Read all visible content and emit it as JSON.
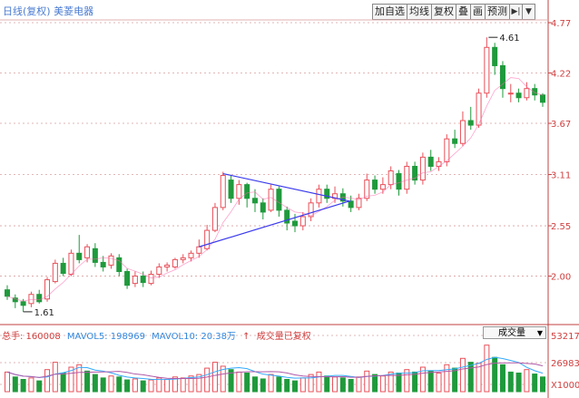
{
  "title": "日线(复权) 美菱电器",
  "toolbar": {
    "buttons": [
      "加自选",
      "均线",
      "复权",
      "叠",
      "画",
      "预测"
    ],
    "icons": [
      "pin-icon",
      "menu-dropdown-icon"
    ]
  },
  "price_axis": [
    "4.77",
    "4.22",
    "3.67",
    "3.11",
    "2.55",
    "2.00"
  ],
  "volume_axis": [
    "53217",
    "26983",
    "X1000"
  ],
  "annotations": {
    "high": "4.61",
    "low": "1.61"
  },
  "volume_legend": {
    "total": "总手: 160008",
    "mavol5": "MAVOL5: 198969",
    "mavol10": "MAVOL10: 20.38万",
    "arrow": "↑",
    "note": "成交量已复权"
  },
  "volume_dropdown": "成交量",
  "colors": {
    "up": "#e8505a",
    "down": "#1f9a3c",
    "triangle": "#3a3af0",
    "ma": "#33aaff",
    "mavol10": "#b05aa8",
    "axis_text": "#d04040"
  },
  "chart_data": {
    "type": "candlestick",
    "title": "",
    "y_range": [
      1.5,
      4.8
    ],
    "y_ticks": [
      4.77,
      4.22,
      3.67,
      3.11,
      2.55,
      2.0
    ],
    "high_label": 4.61,
    "low_label": 1.61,
    "candles": [
      [
        1.85,
        1.78,
        1.9,
        1.74
      ],
      [
        1.76,
        1.72,
        1.8,
        1.65
      ],
      [
        1.72,
        1.68,
        1.75,
        1.61
      ],
      [
        1.7,
        1.8,
        1.83,
        1.66
      ],
      [
        1.8,
        1.72,
        1.85,
        1.7
      ],
      [
        1.75,
        1.96,
        1.99,
        1.72
      ],
      [
        1.94,
        2.14,
        2.18,
        1.92
      ],
      [
        2.14,
        2.03,
        2.2,
        2.0
      ],
      [
        2.02,
        2.25,
        2.29,
        2.0
      ],
      [
        2.25,
        2.18,
        2.45,
        2.14
      ],
      [
        2.2,
        2.32,
        2.35,
        2.15
      ],
      [
        2.3,
        2.15,
        2.36,
        2.1
      ],
      [
        2.15,
        2.1,
        2.22,
        2.05
      ],
      [
        2.12,
        2.22,
        2.25,
        2.08
      ],
      [
        2.2,
        2.05,
        2.24,
        2.0
      ],
      [
        2.05,
        1.9,
        2.08,
        1.86
      ],
      [
        1.92,
        2.0,
        2.05,
        1.88
      ],
      [
        2.0,
        1.93,
        2.05,
        1.88
      ],
      [
        1.92,
        2.02,
        2.06,
        1.9
      ],
      [
        2.02,
        2.1,
        2.14,
        1.98
      ],
      [
        2.1,
        2.12,
        2.15,
        2.05
      ],
      [
        2.1,
        2.18,
        2.2,
        2.08
      ],
      [
        2.18,
        2.2,
        2.24,
        2.14
      ],
      [
        2.2,
        2.25,
        2.28,
        2.16
      ],
      [
        2.25,
        2.32,
        2.4,
        2.2
      ],
      [
        2.3,
        2.5,
        2.56,
        2.28
      ],
      [
        2.5,
        2.75,
        2.8,
        2.48
      ],
      [
        2.75,
        3.1,
        3.14,
        2.72
      ],
      [
        3.05,
        2.85,
        3.1,
        2.8
      ],
      [
        2.85,
        3.0,
        3.05,
        2.78
      ],
      [
        3.0,
        2.85,
        3.02,
        2.75
      ],
      [
        2.85,
        2.8,
        2.95,
        2.7
      ],
      [
        2.8,
        2.7,
        2.85,
        2.62
      ],
      [
        2.72,
        2.95,
        3.0,
        2.7
      ],
      [
        2.95,
        2.72,
        2.98,
        2.65
      ],
      [
        2.72,
        2.58,
        2.76,
        2.5
      ],
      [
        2.6,
        2.55,
        2.68,
        2.48
      ],
      [
        2.55,
        2.65,
        2.7,
        2.5
      ],
      [
        2.65,
        2.8,
        2.85,
        2.6
      ],
      [
        2.8,
        2.95,
        3.0,
        2.75
      ],
      [
        2.95,
        2.85,
        3.0,
        2.8
      ],
      [
        2.85,
        2.9,
        2.98,
        2.8
      ],
      [
        2.9,
        2.82,
        2.96,
        2.76
      ],
      [
        2.82,
        2.75,
        2.88,
        2.7
      ],
      [
        2.75,
        2.85,
        2.9,
        2.72
      ],
      [
        2.85,
        3.05,
        3.12,
        2.82
      ],
      [
        3.05,
        2.95,
        3.1,
        2.9
      ],
      [
        2.95,
        3.0,
        3.08,
        2.9
      ],
      [
        3.0,
        3.15,
        3.2,
        2.95
      ],
      [
        3.12,
        2.95,
        3.16,
        2.88
      ],
      [
        2.95,
        3.2,
        3.25,
        2.9
      ],
      [
        3.2,
        3.05,
        3.25,
        3.0
      ],
      [
        3.05,
        3.3,
        3.35,
        3.0
      ],
      [
        3.3,
        3.2,
        3.38,
        3.15
      ],
      [
        3.2,
        3.25,
        3.3,
        3.15
      ],
      [
        3.25,
        3.5,
        3.55,
        3.2
      ],
      [
        3.5,
        3.45,
        3.6,
        3.4
      ],
      [
        3.45,
        3.7,
        3.8,
        3.42
      ],
      [
        3.7,
        3.65,
        3.85,
        3.6
      ],
      [
        3.65,
        4.0,
        4.05,
        3.62
      ],
      [
        4.0,
        4.5,
        4.61,
        3.95
      ],
      [
        4.5,
        4.3,
        4.55,
        4.2
      ],
      [
        4.3,
        4.05,
        4.35,
        3.95
      ],
      [
        4.0,
        4.0,
        4.1,
        3.9
      ],
      [
        4.0,
        3.95,
        4.05,
        3.9
      ],
      [
        3.95,
        4.05,
        4.12,
        3.92
      ],
      [
        4.05,
        3.98,
        4.1,
        3.92
      ],
      [
        3.98,
        3.9,
        4.0,
        3.85
      ]
    ],
    "volume": [
      [
        40,
        1
      ],
      [
        30,
        0
      ],
      [
        25,
        0
      ],
      [
        28,
        1
      ],
      [
        22,
        0
      ],
      [
        45,
        1
      ],
      [
        60,
        1
      ],
      [
        38,
        0
      ],
      [
        50,
        1
      ],
      [
        55,
        1
      ],
      [
        42,
        0
      ],
      [
        35,
        0
      ],
      [
        28,
        0
      ],
      [
        32,
        1
      ],
      [
        30,
        0
      ],
      [
        24,
        0
      ],
      [
        26,
        1
      ],
      [
        22,
        0
      ],
      [
        24,
        1
      ],
      [
        28,
        1
      ],
      [
        25,
        1
      ],
      [
        30,
        1
      ],
      [
        28,
        1
      ],
      [
        32,
        1
      ],
      [
        35,
        1
      ],
      [
        48,
        1
      ],
      [
        60,
        1
      ],
      [
        52,
        1
      ],
      [
        45,
        0
      ],
      [
        40,
        1
      ],
      [
        38,
        0
      ],
      [
        30,
        0
      ],
      [
        26,
        0
      ],
      [
        35,
        1
      ],
      [
        30,
        0
      ],
      [
        25,
        0
      ],
      [
        22,
        0
      ],
      [
        28,
        1
      ],
      [
        35,
        1
      ],
      [
        40,
        1
      ],
      [
        32,
        0
      ],
      [
        30,
        1
      ],
      [
        28,
        0
      ],
      [
        25,
        0
      ],
      [
        30,
        1
      ],
      [
        42,
        1
      ],
      [
        35,
        0
      ],
      [
        32,
        1
      ],
      [
        40,
        1
      ],
      [
        38,
        0
      ],
      [
        45,
        1
      ],
      [
        40,
        0
      ],
      [
        50,
        1
      ],
      [
        42,
        0
      ],
      [
        38,
        1
      ],
      [
        55,
        1
      ],
      [
        48,
        0
      ],
      [
        68,
        1
      ],
      [
        60,
        0
      ],
      [
        58,
        1
      ],
      [
        95,
        1
      ],
      [
        70,
        0
      ],
      [
        55,
        0
      ],
      [
        40,
        0
      ],
      [
        38,
        0
      ],
      [
        45,
        1
      ],
      [
        36,
        0
      ],
      [
        30,
        0
      ]
    ]
  }
}
